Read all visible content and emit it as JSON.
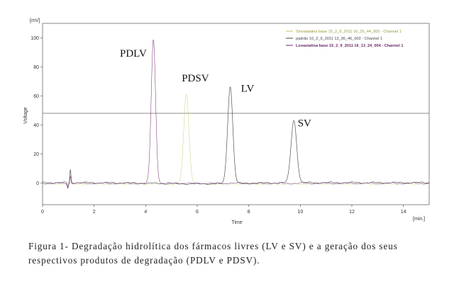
{
  "chart_data": {
    "type": "line",
    "y_unit": "[mV]",
    "x_unit": "[min.]",
    "xlabel": "Time",
    "ylabel": "Voltage",
    "xlim": [
      0,
      15
    ],
    "ylim": [
      -15,
      110
    ],
    "x_ticks": [
      "0",
      "2",
      "4",
      "6",
      "8",
      "10",
      "12",
      "14"
    ],
    "y_ticks": [
      "0",
      "20",
      "40",
      "60",
      "80",
      "100"
    ],
    "grid": false,
    "threshold_line": 48,
    "legend_position": "top-right",
    "series": [
      {
        "name": "Sinvastatina base 15_2_9_2011 16_25_44_005 - Channel 1",
        "color": "#c8c86e",
        "peaks": [
          {
            "t": 5.58,
            "h": 62
          }
        ]
      },
      {
        "name": "padrão 10_2_9_2011 12_36_46_003 - Channel 1",
        "color": "#555555",
        "peaks": [
          {
            "t": 7.28,
            "h": 67
          },
          {
            "t": 9.75,
            "h": 43
          }
        ]
      },
      {
        "name": "Lovastatina base 15_2_9_2011 16_13_24_004 - Channel 1",
        "color": "#7a3b7a",
        "peaks": [
          {
            "t": 4.3,
            "h": 99
          }
        ]
      }
    ],
    "annotations": [
      {
        "text": "PDLV",
        "x": 3.0,
        "y": 87
      },
      {
        "text": "PDSV",
        "x": 5.4,
        "y": 70
      },
      {
        "text": "LV",
        "x": 7.7,
        "y": 63
      },
      {
        "text": "SV",
        "x": 9.9,
        "y": 39
      }
    ]
  },
  "caption": {
    "line1": "Figura 1- Degradação hidrolítica dos fármacos livres (LV e SV)  e a geração dos seus",
    "line2": "respectivos produtos de degradação  (PDLV e PDSV)."
  }
}
